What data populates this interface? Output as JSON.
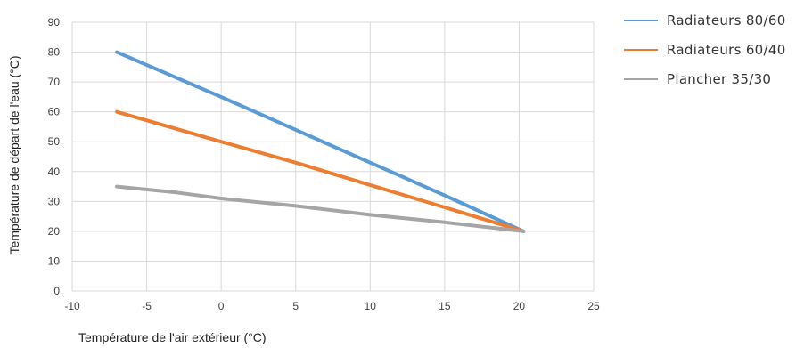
{
  "chart_data": {
    "type": "line",
    "title": "",
    "xlabel": "Température de l'air extérieur (°C)",
    "ylabel": "Température de départ de l'eau (°C)",
    "xlim": [
      -10,
      25
    ],
    "ylim": [
      0,
      90
    ],
    "xticks": [
      -10,
      -5,
      0,
      5,
      10,
      15,
      20,
      25
    ],
    "yticks": [
      0,
      10,
      20,
      30,
      40,
      50,
      60,
      70,
      80,
      90
    ],
    "grid": true,
    "legend_position": "right",
    "series": [
      {
        "name": "Radiateurs 80/60",
        "color": "#5b9bd5",
        "points": [
          [
            -7,
            80
          ],
          [
            0,
            65
          ],
          [
            5,
            54
          ],
          [
            10,
            43
          ],
          [
            15,
            32
          ],
          [
            20.3,
            20
          ]
        ]
      },
      {
        "name": "Radiateurs 60/40",
        "color": "#ed7d31",
        "points": [
          [
            -7,
            60
          ],
          [
            0,
            50
          ],
          [
            5,
            43
          ],
          [
            10,
            35.5
          ],
          [
            15,
            28
          ],
          [
            20.3,
            20
          ]
        ]
      },
      {
        "name": "Plancher 35/30",
        "color": "#a5a5a5",
        "points": [
          [
            -7,
            35
          ],
          [
            -3,
            33
          ],
          [
            0,
            31
          ],
          [
            5,
            28.5
          ],
          [
            10,
            25.5
          ],
          [
            15,
            23
          ],
          [
            20.3,
            20
          ]
        ]
      }
    ]
  }
}
